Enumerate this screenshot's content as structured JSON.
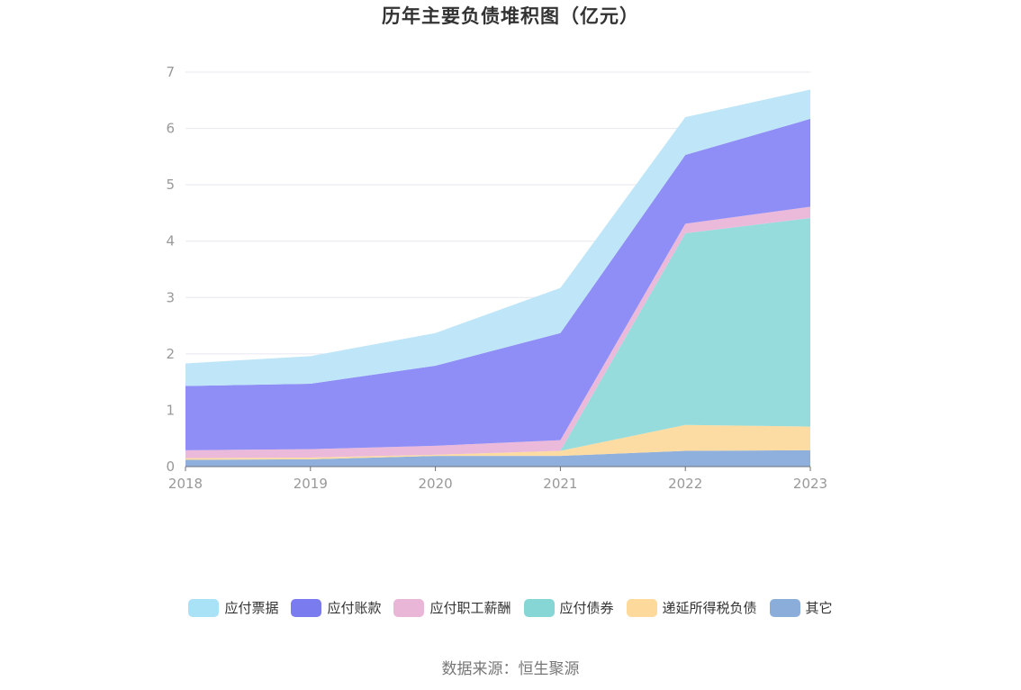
{
  "title": "历年主要负债堆积图（亿元）",
  "source": "数据来源：恒生聚源",
  "chart_data": {
    "type": "area",
    "stacked": true,
    "title": "历年主要负债堆积图（亿元）",
    "x": [
      "2018",
      "2019",
      "2020",
      "2021",
      "2022",
      "2023"
    ],
    "ylim": [
      0,
      7
    ],
    "yticks": [
      "0",
      "1",
      "2",
      "3",
      "4",
      "5",
      "6",
      "7"
    ],
    "grid": true,
    "legend_position": "bottom",
    "series": [
      {
        "name": "其它",
        "color": "#8fb0dc",
        "values": [
          0.12,
          0.13,
          0.19,
          0.19,
          0.28,
          0.29
        ]
      },
      {
        "name": "递延所得税负债",
        "color": "#fcdca3",
        "values": [
          0.03,
          0.03,
          0.02,
          0.09,
          0.46,
          0.42
        ]
      },
      {
        "name": "应付债券",
        "color": "#96dcdc",
        "values": [
          0.0,
          0.0,
          0.0,
          0.0,
          3.4,
          3.7
        ]
      },
      {
        "name": "应付职工薪酬",
        "color": "#ebbadb",
        "values": [
          0.14,
          0.15,
          0.16,
          0.19,
          0.17,
          0.2
        ]
      },
      {
        "name": "应付账款",
        "color": "#8e8ef6",
        "values": [
          1.14,
          1.16,
          1.42,
          1.9,
          1.22,
          1.56
        ]
      },
      {
        "name": "应付票据",
        "color": "#bee6f8",
        "values": [
          0.4,
          0.49,
          0.58,
          0.8,
          0.67,
          0.52
        ]
      }
    ]
  },
  "legend": [
    {
      "label": "应付票据",
      "color": "#a9e1f7"
    },
    {
      "label": "应付账款",
      "color": "#7b7bf0"
    },
    {
      "label": "应付职工薪酬",
      "color": "#e9b6d8"
    },
    {
      "label": "应付债券",
      "color": "#86d6d6"
    },
    {
      "label": "递延所得税负债",
      "color": "#fdd99b"
    },
    {
      "label": "其它",
      "color": "#8badd9"
    }
  ]
}
